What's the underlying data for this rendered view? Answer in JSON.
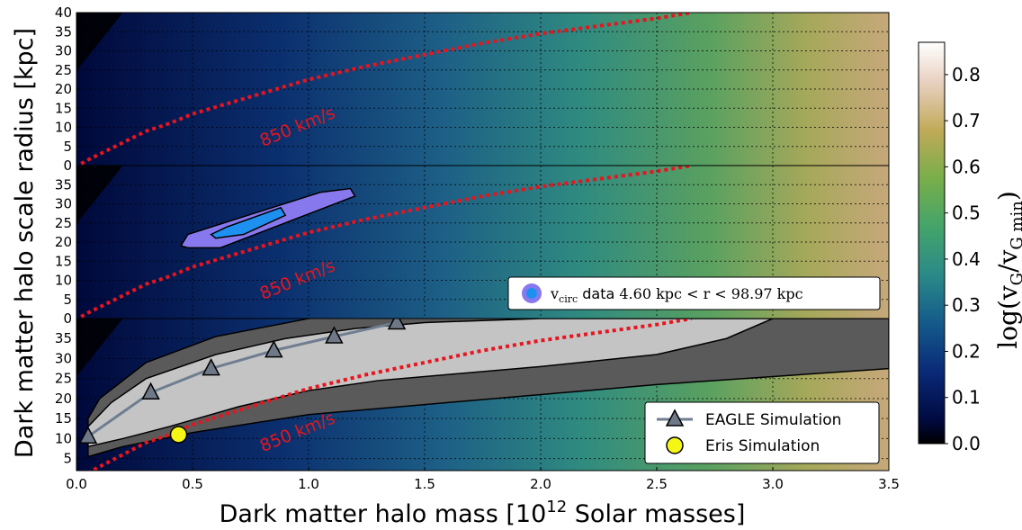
{
  "chart_data": {
    "type": "heatmap",
    "x_range": [
      0.0,
      3.5
    ],
    "x_ticks": [
      "0.0",
      "0.5",
      "1.0",
      "1.5",
      "2.0",
      "2.5",
      "3.0",
      "3.5"
    ],
    "xlabel": "Dark matter halo mass [10",
    "xlabel_exp": "12",
    "xlabel_end": " Solar masses]",
    "ylabel": "Dark matter halo scale radius [kpc]",
    "grid": true,
    "panels": [
      {
        "y_range": [
          0,
          40
        ],
        "y_ticks": [
          "0",
          "5",
          "10",
          "15",
          "20",
          "25",
          "30",
          "35",
          "40"
        ],
        "annotation": "850 km/s"
      },
      {
        "y_range": [
          0,
          40
        ],
        "y_ticks": [
          "0",
          "5",
          "10",
          "15",
          "20",
          "25",
          "30",
          "35"
        ],
        "annotation": "850 km/s",
        "legend": {
          "placement": "lower-right",
          "label_prefix": "v",
          "label_sub": "circ",
          "label_mid": " data ",
          "label_range": "4.60 kpc < r < 98.97 kpc"
        },
        "contour_outer": [
          [
            0.45,
            19
          ],
          [
            0.48,
            22
          ],
          [
            1.05,
            33
          ],
          [
            1.18,
            34
          ],
          [
            1.2,
            32
          ],
          [
            0.62,
            18.5
          ],
          [
            0.48,
            18.5
          ]
        ],
        "contour_inner": [
          [
            0.58,
            22
          ],
          [
            0.65,
            24
          ],
          [
            0.88,
            29
          ],
          [
            0.9,
            27
          ],
          [
            0.72,
            22
          ],
          [
            0.6,
            21
          ]
        ]
      },
      {
        "y_range": [
          2,
          40
        ],
        "y_ticks": [
          "5",
          "10",
          "15",
          "20",
          "25",
          "30",
          "35"
        ],
        "annotation": "850 km/s",
        "legend": {
          "placement": "lower-right",
          "entries": [
            "EAGLE Simulation",
            "Eris Simulation"
          ]
        },
        "eagle_points": [
          {
            "x": 0.05,
            "y": 10.5
          },
          {
            "x": 0.32,
            "y": 21.5
          },
          {
            "x": 0.58,
            "y": 27.5
          },
          {
            "x": 0.85,
            "y": 32
          },
          {
            "x": 1.11,
            "y": 35.5
          },
          {
            "x": 1.38,
            "y": 39
          }
        ],
        "eris_point": {
          "x": 0.44,
          "y": 11
        },
        "outer_band_upper": [
          [
            0.05,
            15
          ],
          [
            0.1,
            20
          ],
          [
            0.3,
            29
          ],
          [
            0.6,
            35.5
          ],
          [
            1.0,
            40
          ],
          [
            1.5,
            42
          ],
          [
            3.5,
            42
          ]
        ],
        "outer_band_lower": [
          [
            0.05,
            5.5
          ],
          [
            0.2,
            8
          ],
          [
            0.5,
            11.5
          ],
          [
            1.0,
            16
          ],
          [
            1.5,
            18.5
          ],
          [
            2.0,
            21
          ],
          [
            2.5,
            23.5
          ],
          [
            3.0,
            25.5
          ],
          [
            3.5,
            27.5
          ]
        ],
        "inner_band_upper": [
          [
            0.05,
            13
          ],
          [
            0.15,
            19
          ],
          [
            0.3,
            25
          ],
          [
            0.6,
            31
          ],
          [
            0.9,
            35
          ],
          [
            1.2,
            37.5
          ],
          [
            1.5,
            39
          ],
          [
            2.0,
            40
          ],
          [
            2.5,
            40
          ],
          [
            3.0,
            40
          ],
          [
            3.5,
            40
          ]
        ],
        "inner_band_lower": [
          [
            0.05,
            8
          ],
          [
            0.2,
            10
          ],
          [
            0.4,
            13
          ],
          [
            0.7,
            18
          ],
          [
            1.0,
            22
          ],
          [
            1.3,
            24.5
          ],
          [
            1.6,
            26
          ],
          [
            2.0,
            28
          ],
          [
            2.5,
            31
          ],
          [
            2.8,
            35
          ],
          [
            3.0,
            40
          ],
          [
            3.5,
            40
          ]
        ]
      }
    ],
    "curve_850": [
      [
        0.02,
        0.5
      ],
      [
        0.05,
        1.5
      ],
      [
        0.1,
        3
      ],
      [
        0.2,
        6
      ],
      [
        0.3,
        9
      ],
      [
        0.4,
        11
      ],
      [
        0.5,
        13.5
      ],
      [
        0.75,
        18
      ],
      [
        1.0,
        22.5
      ],
      [
        1.25,
        26
      ],
      [
        1.5,
        29
      ],
      [
        1.75,
        32
      ],
      [
        2.0,
        34.5
      ],
      [
        2.25,
        36.5
      ],
      [
        2.5,
        38.5
      ],
      [
        2.65,
        40
      ]
    ],
    "colorbar": {
      "range": [
        0.0,
        0.87
      ],
      "ticks": [
        "0.0",
        "0.1",
        "0.2",
        "0.3",
        "0.4",
        "0.5",
        "0.6",
        "0.7",
        "0.8"
      ],
      "label_prefix": "log(v",
      "label_sub1": "G",
      "label_mid": "/v",
      "label_sub2": "G min",
      "label_end": ")",
      "colors": [
        "#000000",
        "#000a40",
        "#0a2a78",
        "#145a8a",
        "#2a8a88",
        "#44a46a",
        "#78ae4a",
        "#c0aa58",
        "#e8d0c0",
        "#ffffff"
      ]
    }
  }
}
